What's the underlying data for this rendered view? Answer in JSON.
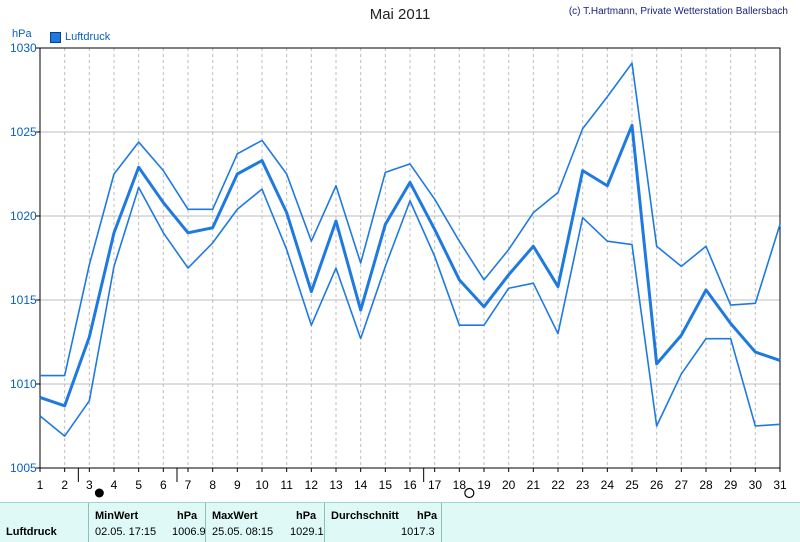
{
  "header": {
    "title": "Mai 2011",
    "credit": "(c) T.Hartmann, Private Wetterstation Ballersbach"
  },
  "legend": {
    "label": "Luftdruck"
  },
  "colors": {
    "series": "#1f7ae0",
    "grid": "#bdbdbd",
    "axis": "#000000"
  },
  "chart_data": {
    "type": "line",
    "ylabel": "hPa",
    "ylim": [
      1005,
      1030
    ],
    "yticks": [
      1005,
      1010,
      1015,
      1020,
      1025,
      1030
    ],
    "x": [
      1,
      2,
      3,
      4,
      5,
      6,
      7,
      8,
      9,
      10,
      11,
      12,
      13,
      14,
      15,
      16,
      17,
      18,
      19,
      20,
      21,
      22,
      23,
      24,
      25,
      26,
      27,
      28,
      29,
      30,
      31
    ],
    "xlim": [
      1,
      31
    ],
    "grid": true,
    "legend_position": "top-left",
    "series": [
      {
        "name": "Luftdruck",
        "role": "max",
        "values": [
          1010.5,
          1010.5,
          1017.1,
          1022.5,
          1024.4,
          1022.7,
          1020.4,
          1020.4,
          1023.7,
          1024.5,
          1022.5,
          1018.5,
          1021.8,
          1017.2,
          1022.6,
          1023.1,
          1021.0,
          1018.5,
          1016.2,
          1018.0,
          1020.2,
          1021.4,
          1025.2,
          1027.1,
          1029.1,
          1018.2,
          1017.0,
          1018.2,
          1014.7,
          1014.8,
          1019.5
        ]
      },
      {
        "name": "Luftdruck",
        "role": "mean",
        "values": [
          1009.2,
          1008.7,
          1012.8,
          1019.0,
          1022.9,
          1020.8,
          1019.0,
          1019.3,
          1022.5,
          1023.3,
          1020.2,
          1015.5,
          1019.7,
          1014.4,
          1019.5,
          1022.0,
          1019.2,
          1016.2,
          1014.6,
          1016.5,
          1018.2,
          1015.8,
          1022.7,
          1021.8,
          1025.4,
          1011.2,
          1012.9,
          1015.6,
          1013.6,
          1011.9,
          1011.4
        ]
      },
      {
        "name": "Luftdruck",
        "role": "min",
        "values": [
          1008.1,
          1006.9,
          1009.0,
          1017.0,
          1021.7,
          1019.0,
          1016.9,
          1018.4,
          1020.4,
          1021.6,
          1018.0,
          1013.5,
          1016.9,
          1012.7,
          1017.0,
          1020.9,
          1017.6,
          1013.5,
          1013.5,
          1015.7,
          1016.0,
          1013.0,
          1019.9,
          1018.5,
          1018.3,
          1007.5,
          1010.6,
          1012.7,
          1012.7,
          1007.5,
          1007.6
        ]
      }
    ],
    "markers": [
      {
        "day": 3,
        "symbol": "filled-circle"
      },
      {
        "day": 18,
        "symbol": "open-circle"
      }
    ],
    "vertical_ticks": [
      3,
      7,
      17
    ]
  },
  "footer": {
    "row_label": "Luftdruck",
    "min": {
      "label": "MinWert",
      "unit": "hPa",
      "when": "02.05.  17:15",
      "value": "1006.9"
    },
    "max": {
      "label": "MaxWert",
      "unit": "hPa",
      "when": "25.05.  08:15",
      "value": "1029.1"
    },
    "avg": {
      "label": "Durchschnitt",
      "unit": "hPa",
      "value": "1017.3"
    }
  }
}
